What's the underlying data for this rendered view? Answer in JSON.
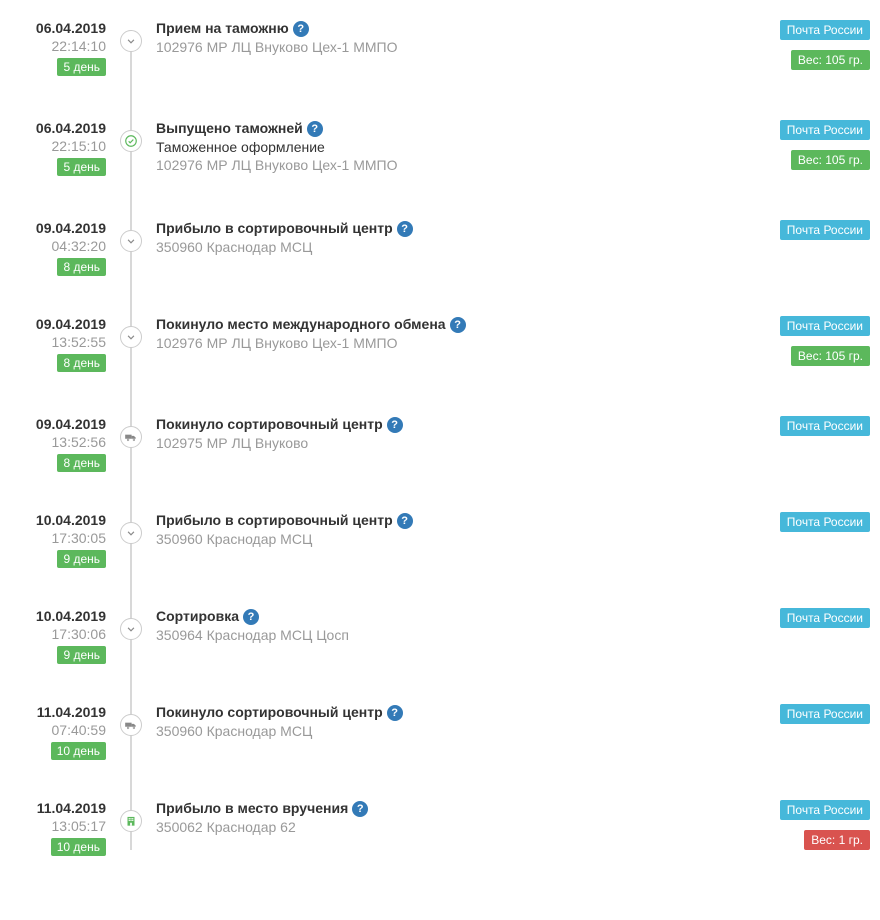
{
  "colors": {
    "carrier_badge": "#46b8da",
    "green_badge": "#5cb85c",
    "red_badge": "#d9534f",
    "help_icon": "#337ab7",
    "track": "#d8d8d8",
    "text_muted": "#999999",
    "text": "#333333"
  },
  "help_glyph": "?",
  "events": [
    {
      "date": "06.04.2019",
      "time": "22:14:10",
      "day": "5 день",
      "icon": "chevron",
      "title": "Прием на таможню",
      "location": "102976 МР ЛЦ Внуково Цех-1 ММПО",
      "carrier": "Почта России",
      "weight": "Вес: 105 гр.",
      "weight_style": "green"
    },
    {
      "date": "06.04.2019",
      "time": "22:15:10",
      "day": "5 день",
      "icon": "check",
      "title": "Выпущено таможней",
      "subtitle": "Таможенное оформление",
      "location": "102976 МР ЛЦ Внуково Цех-1 ММПО",
      "carrier": "Почта России",
      "weight": "Вес: 105 гр.",
      "weight_style": "green"
    },
    {
      "date": "09.04.2019",
      "time": "04:32:20",
      "day": "8 день",
      "icon": "chevron",
      "title": "Прибыло в сортировочный центр",
      "location": "350960 Краснодар МСЦ",
      "carrier": "Почта России"
    },
    {
      "date": "09.04.2019",
      "time": "13:52:55",
      "day": "8 день",
      "icon": "chevron",
      "title": "Покинуло место международного обмена",
      "location": "102976 МР ЛЦ Внуково Цех-1 ММПО",
      "carrier": "Почта России",
      "weight": "Вес: 105 гр.",
      "weight_style": "green"
    },
    {
      "date": "09.04.2019",
      "time": "13:52:56",
      "day": "8 день",
      "icon": "truck",
      "title": "Покинуло сортировочный центр",
      "location": "102975 МР ЛЦ Внуково",
      "carrier": "Почта России"
    },
    {
      "date": "10.04.2019",
      "time": "17:30:05",
      "day": "9 день",
      "icon": "chevron",
      "title": "Прибыло в сортировочный центр",
      "location": "350960 Краснодар МСЦ",
      "carrier": "Почта России"
    },
    {
      "date": "10.04.2019",
      "time": "17:30:06",
      "day": "9 день",
      "icon": "chevron",
      "title": "Сортировка",
      "location": "350964 Краснодар МСЦ Цосп",
      "carrier": "Почта России"
    },
    {
      "date": "11.04.2019",
      "time": "07:40:59",
      "day": "10 день",
      "icon": "truck",
      "title": "Покинуло сортировочный центр",
      "location": "350960 Краснодар МСЦ",
      "carrier": "Почта России"
    },
    {
      "date": "11.04.2019",
      "time": "13:05:17",
      "day": "10 день",
      "icon": "building",
      "title": "Прибыло в место вручения",
      "location": "350062 Краснодар 62",
      "carrier": "Почта России",
      "weight": "Вес: 1 гр.",
      "weight_style": "red"
    }
  ]
}
